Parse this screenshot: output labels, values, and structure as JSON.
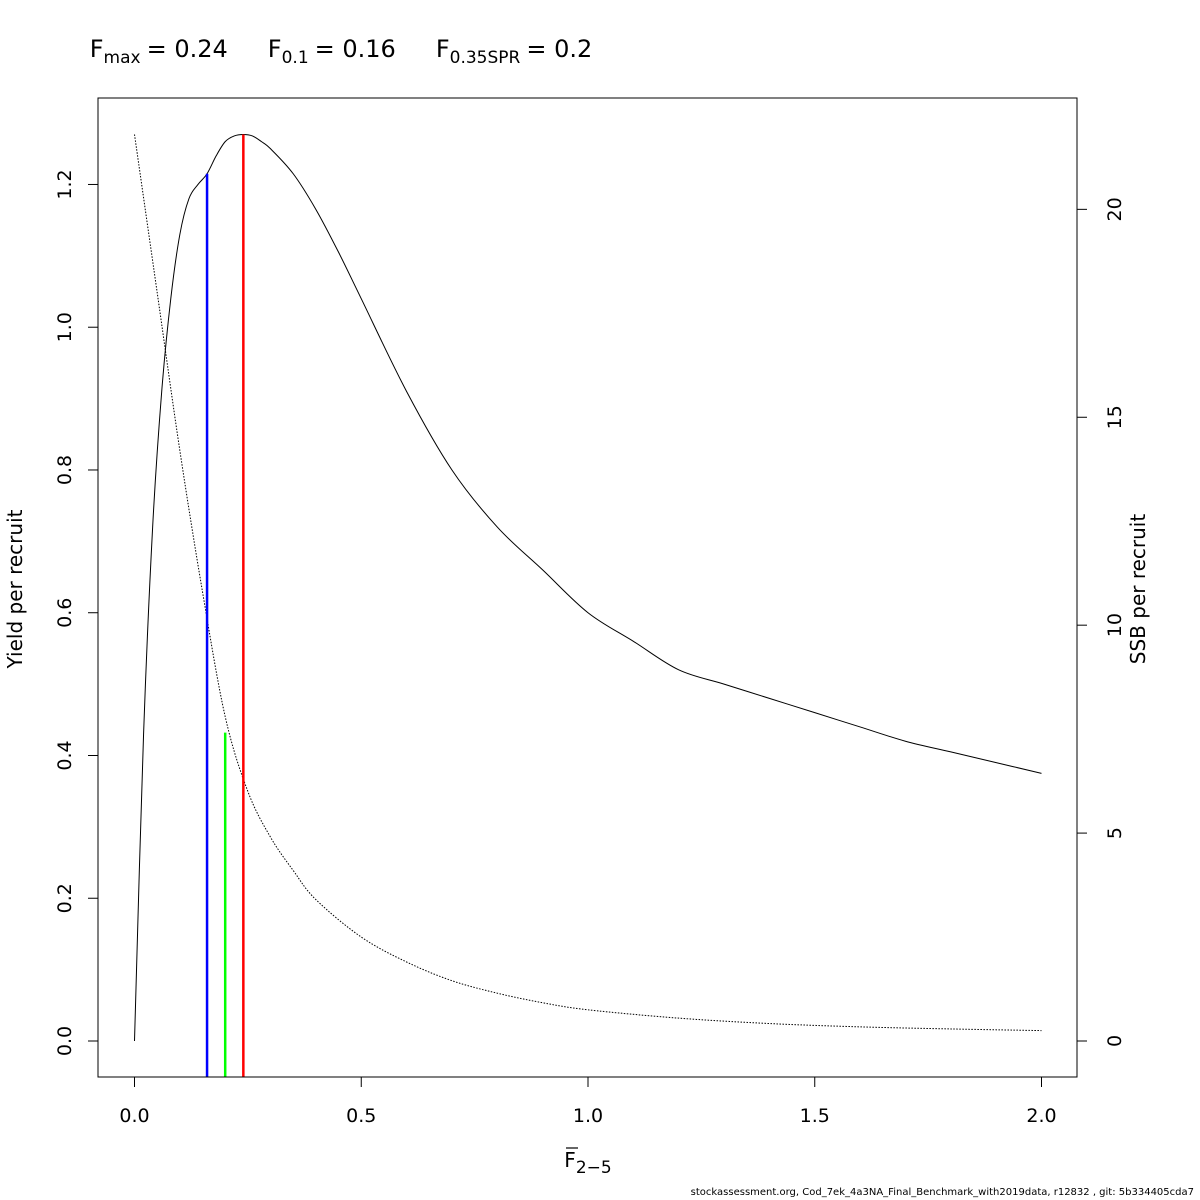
{
  "title": {
    "fmax_label": "F",
    "fmax_sub": "max",
    "fmax_value": "= 0.24",
    "f01_label": "F",
    "f01_sub": "0.1",
    "f01_value": "= 0.16",
    "fspr_label": "F",
    "fspr_sub": "0.35SPR",
    "fspr_value": "= 0.2"
  },
  "footer": "stockassessment.org, Cod_7ek_4a3NA_Final_Benchmark_with2019data, r12832 , git: 5b334405cda7",
  "chart_data": {
    "type": "line",
    "xlabel": "F",
    "xlabel_sub": "2−5",
    "ylabel": "Yield per recruit",
    "ylabel_right": "SSB per recruit",
    "xlim": [
      0.0,
      2.0
    ],
    "ylim": [
      0.0,
      1.27
    ],
    "ylim_right": [
      0.0,
      21.8
    ],
    "x_ticks": [
      "0.0",
      "0.5",
      "1.0",
      "1.5",
      "2.0"
    ],
    "y_ticks": [
      "0.0",
      "0.2",
      "0.4",
      "0.6",
      "0.8",
      "1.0",
      "1.2"
    ],
    "y_right_ticks": [
      "0",
      "5",
      "10",
      "15",
      "20"
    ],
    "series": [
      {
        "axis": "left",
        "style": "solid",
        "x": [
          0.0,
          0.02,
          0.04,
          0.06,
          0.08,
          0.1,
          0.12,
          0.14,
          0.16,
          0.18,
          0.2,
          0.22,
          0.24,
          0.26,
          0.28,
          0.3,
          0.35,
          0.4,
          0.45,
          0.5,
          0.6,
          0.7,
          0.8,
          0.9,
          1.0,
          1.1,
          1.2,
          1.3,
          1.4,
          1.5,
          1.6,
          1.7,
          1.8,
          1.9,
          2.0
        ],
        "y": [
          0.0,
          0.43,
          0.72,
          0.91,
          1.04,
          1.13,
          1.18,
          1.2,
          1.215,
          1.24,
          1.26,
          1.268,
          1.27,
          1.268,
          1.26,
          1.25,
          1.215,
          1.165,
          1.105,
          1.04,
          0.91,
          0.8,
          0.72,
          0.66,
          0.6,
          0.56,
          0.52,
          0.5,
          0.48,
          0.46,
          0.44,
          0.42,
          0.405,
          0.39,
          0.375
        ]
      },
      {
        "axis": "right",
        "style": "dotted",
        "x": [
          0.0,
          0.05,
          0.1,
          0.15,
          0.2,
          0.25,
          0.3,
          0.35,
          0.4,
          0.5,
          0.6,
          0.7,
          0.8,
          0.9,
          1.0,
          1.2,
          1.4,
          1.6,
          1.8,
          2.0
        ],
        "y": [
          21.8,
          18.0,
          14.2,
          10.8,
          7.8,
          6.0,
          4.9,
          4.1,
          3.4,
          2.5,
          1.9,
          1.45,
          1.15,
          0.92,
          0.75,
          0.55,
          0.42,
          0.34,
          0.29,
          0.25
        ]
      }
    ],
    "reference_lines": [
      {
        "name": "F0.1",
        "x": 0.16,
        "y_top": 1.215,
        "color": "#0000ff"
      },
      {
        "name": "F0.35SPR",
        "x": 0.2,
        "y_top": 0.432,
        "color": "#00ff00"
      },
      {
        "name": "Fmax",
        "x": 0.24,
        "y_top": 1.27,
        "color": "#ff0000"
      }
    ]
  }
}
